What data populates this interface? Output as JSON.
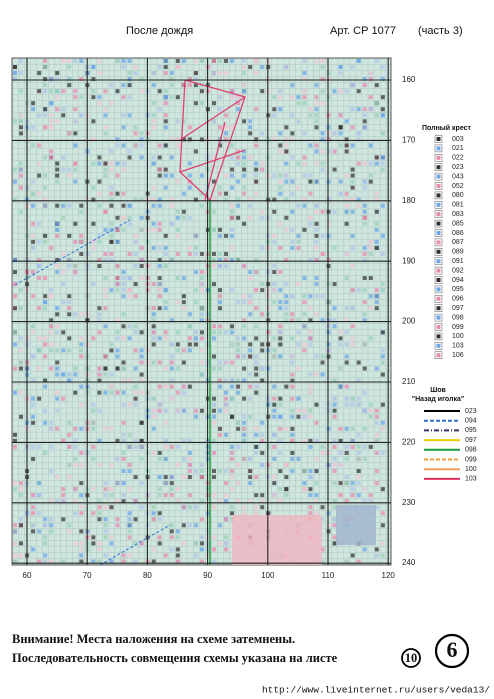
{
  "header": {
    "title": "После дождя",
    "article": "Арт. СР 1077",
    "part": "(часть 3)"
  },
  "scheme": {
    "x_labels": [
      "60",
      "70",
      "80",
      "90",
      "100",
      "110",
      "120"
    ],
    "y_labels": [
      "160",
      "170",
      "180",
      "190",
      "200",
      "210",
      "220",
      "230",
      "240"
    ]
  },
  "legend": {
    "full_cross_title": "Полный крест",
    "full_cross": [
      "003",
      "021",
      "022",
      "023",
      "043",
      "052",
      "080",
      "081",
      "083",
      "085",
      "086",
      "087",
      "089",
      "091",
      "092",
      "094",
      "095",
      "096",
      "097",
      "098",
      "099",
      "100",
      "103",
      "106"
    ],
    "stitch_title": "Шов",
    "stitch_subtitle": "\"Назад иголка\"",
    "stitches": [
      {
        "code": "023",
        "color": "#000000",
        "style": "solid"
      },
      {
        "code": "094",
        "color": "#2f6fd6",
        "style": "dashed"
      },
      {
        "code": "095",
        "color": "#333366",
        "style": "dashdot"
      },
      {
        "code": "097",
        "color": "#e8d000",
        "style": "solid"
      },
      {
        "code": "098",
        "color": "#1a9a3a",
        "style": "solid"
      },
      {
        "code": "099",
        "color": "#f0a040",
        "style": "dashed"
      },
      {
        "code": "100",
        "color": "#f4a060",
        "style": "solid"
      },
      {
        "code": "103",
        "color": "#e03060",
        "style": "solid"
      }
    ]
  },
  "footer": {
    "line1": "Внимание! Места наложения на схеме затемнены.",
    "line2": "Последовательность совмещения схемы указана на листе",
    "sheet": "10",
    "page": "6"
  },
  "url": "http://www.liveinternet.ru/users/veda13/"
}
